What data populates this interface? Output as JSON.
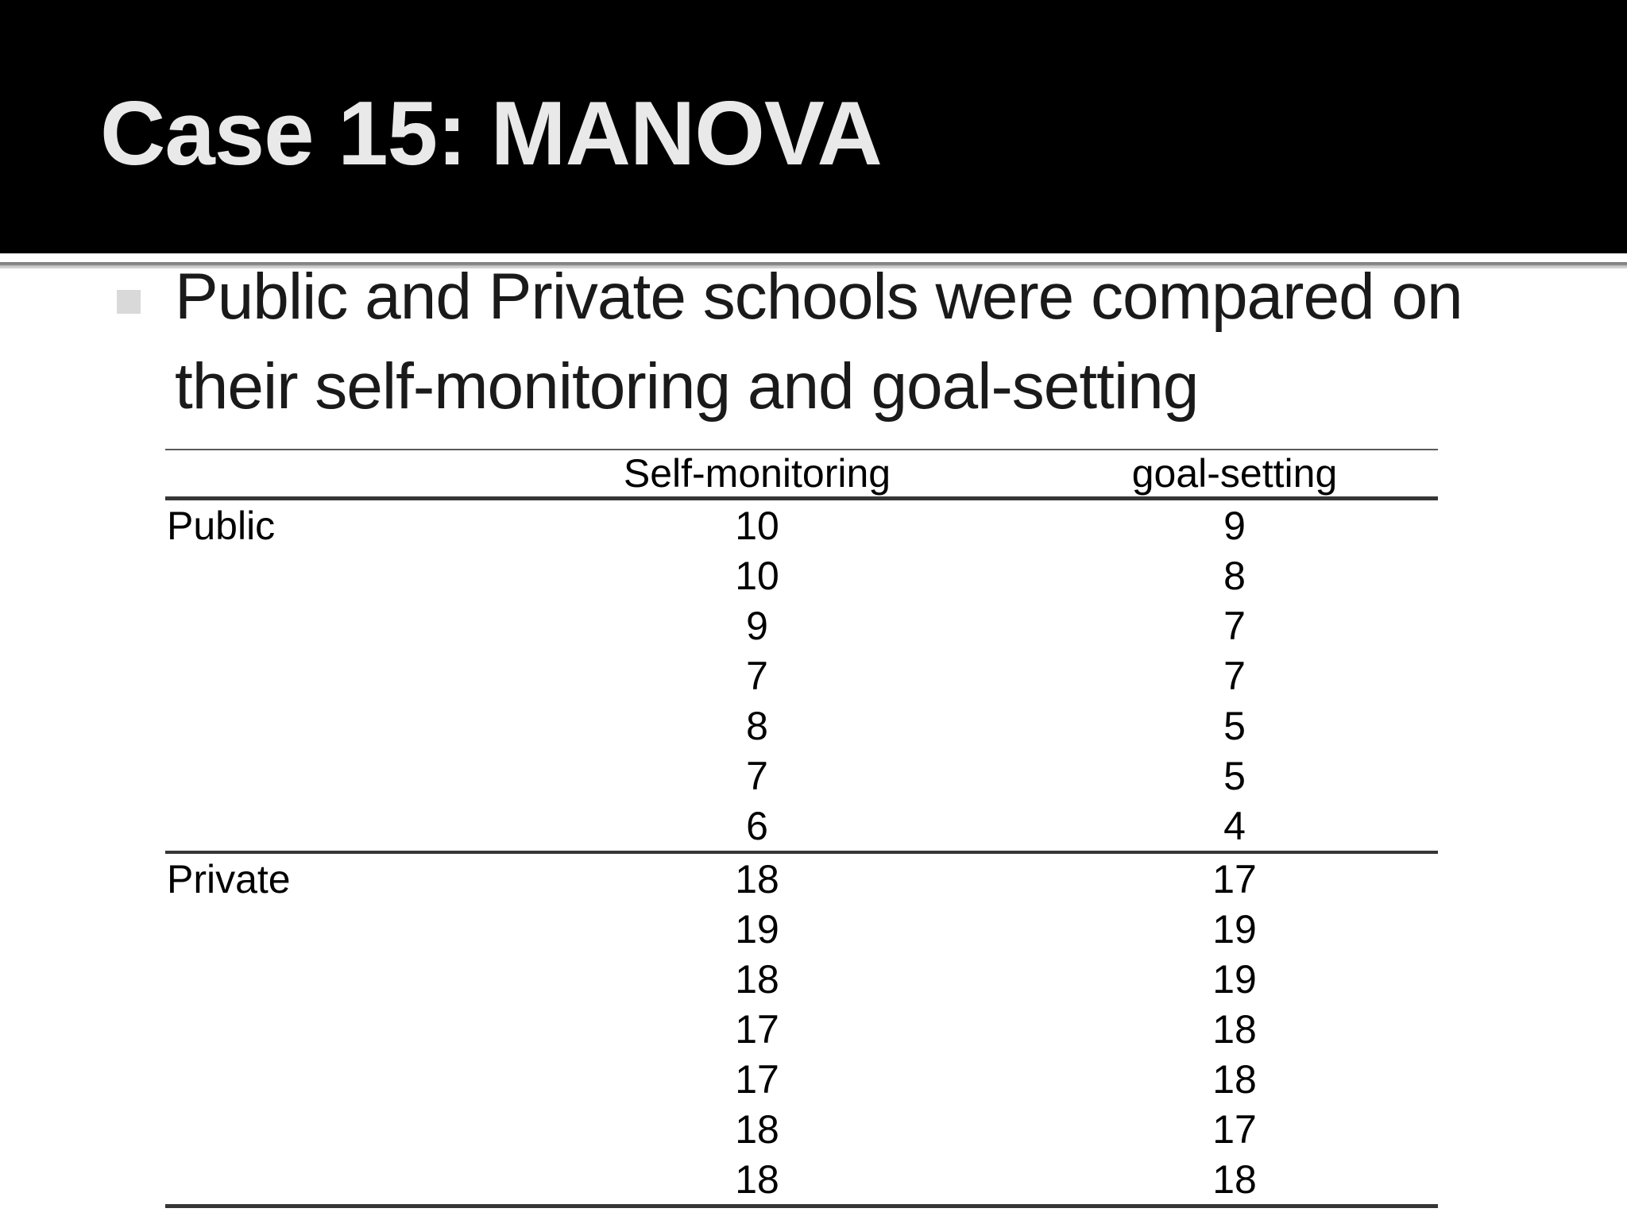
{
  "slide": {
    "title": "Case 15: MANOVA",
    "bullet": {
      "marker_icon": "square-bullet-icon",
      "marker_color": "#d9d9d9",
      "lines": [
        "Public and Private schools were compared on",
        "their self-monitoring and goal-setting"
      ]
    }
  },
  "table": {
    "column_headers": [
      "Self-monitoring",
      "goal-setting"
    ],
    "groups": [
      {
        "label": "Public",
        "rows": [
          [
            10,
            9
          ],
          [
            10,
            8
          ],
          [
            9,
            7
          ],
          [
            7,
            7
          ],
          [
            8,
            5
          ],
          [
            7,
            5
          ],
          [
            6,
            4
          ]
        ]
      },
      {
        "label": "Private",
        "rows": [
          [
            18,
            17
          ],
          [
            19,
            19
          ],
          [
            18,
            19
          ],
          [
            17,
            18
          ],
          [
            17,
            18
          ],
          [
            18,
            17
          ],
          [
            18,
            18
          ]
        ]
      }
    ]
  },
  "colors": {
    "banner_bg": "#000000",
    "title_text": "#e9e9e9",
    "body_text": "#1a1a1a",
    "table_rule": "#363636"
  }
}
